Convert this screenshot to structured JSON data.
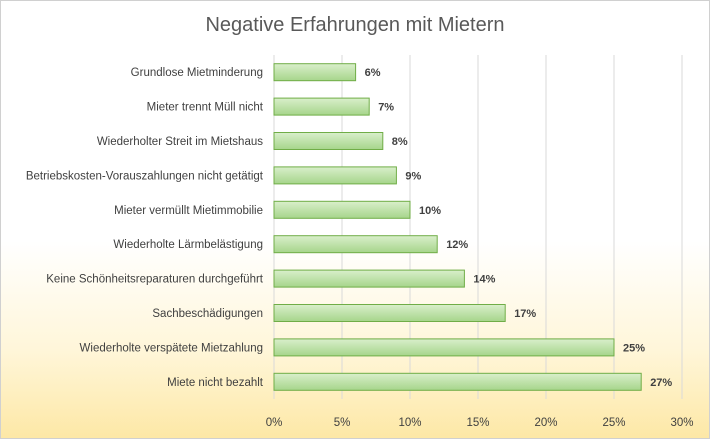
{
  "chart_data": {
    "type": "bar",
    "orientation": "horizontal",
    "title": "Negative Erfahrungen mit Mietern",
    "xlabel": "",
    "ylabel": "",
    "categories": [
      "Grundlose Mietminderung",
      "Mieter trennt Müll nicht",
      "Wiederholter Streit im Mietshaus",
      "Betriebskosten-Vorauszahlungen nicht getätigt",
      "Mieter vermüllt Mietimmobilie",
      "Wiederholte Lärmbelästigung",
      "Keine Schönheitsreparaturen durchgeführt",
      "Sachbeschädigungen",
      "Wiederholte verspätete Mietzahlung",
      "Miete nicht bezahlt"
    ],
    "values": [
      6,
      7,
      8,
      9,
      10,
      12,
      14,
      17,
      25,
      27
    ],
    "value_labels": [
      "6%",
      "7%",
      "8%",
      "9%",
      "10%",
      "12%",
      "14%",
      "17%",
      "25%",
      "27%"
    ],
    "xlim": [
      0,
      30
    ],
    "xticks": [
      0,
      5,
      10,
      15,
      20,
      25,
      30
    ],
    "xtick_labels": [
      "0%",
      "5%",
      "10%",
      "15%",
      "20%",
      "25%",
      "30%"
    ],
    "grid": true,
    "legend": "none",
    "colors": {
      "bar_fill_light": "#d9efcb",
      "bar_fill_dark": "#a6d58b",
      "bar_stroke": "#70ad47",
      "grid": "#d9d9d9",
      "text": "#404040",
      "title": "#595959"
    }
  }
}
